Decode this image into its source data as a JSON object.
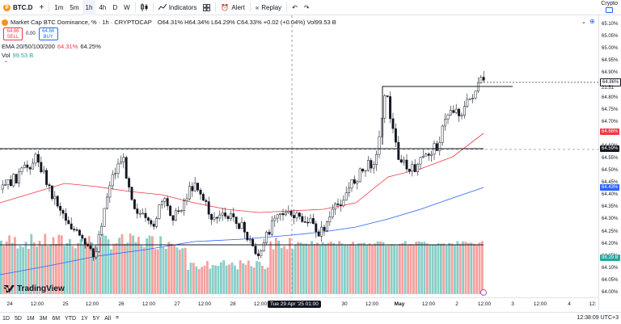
{
  "toolbar": {
    "symbol": "BTC.D",
    "timeframes": [
      "1m",
      "5m",
      "1h",
      "4h",
      "D",
      "W"
    ],
    "active_timeframe": "1h",
    "indicators_label": "Indicators",
    "alert_label": "Alert",
    "replay_label": "Replay",
    "crypto_label": "Crypto"
  },
  "legend": {
    "title": "Market Cap BTC Dominance, % · 1h · CRYPTOCAP",
    "ohlc": "O64.31% H64.34% L64.29% C64.33% +0.02 (+0.04%) Vol99.53 B",
    "sell_price": "64.86",
    "sell_label": "SELL",
    "buy_price": "64.86",
    "buy_label": "BUY",
    "spread": "0.00",
    "ema_label": "EMA 20/50/100/200",
    "ema_v1": "64.31%",
    "ema_v2": "64.25%",
    "vol_label": "Vol",
    "vol_value": "99.53 B"
  },
  "price_axis": {
    "ticks": [
      "65.10%",
      "65.05%",
      "65.00%",
      "64.95%",
      "64.90%",
      "64.80%",
      "64.75%",
      "64.70%",
      "64.60%",
      "64.55%",
      "64.50%",
      "64.45%",
      "64.40%",
      "64.35%",
      "64.30%",
      "64.25%",
      "64.20%",
      "64.15%",
      "64.10%",
      "64.05%",
      "64.00%"
    ],
    "current_price": "64.86%",
    "current_time": "21:51",
    "ema_red": "64.66%",
    "crosshair_price": "64.59%",
    "ema_blue": "64.43%",
    "volume": "98.29 B"
  },
  "time_axis": {
    "labels": [
      "24",
      "12:00",
      "25",
      "12:00",
      "26",
      "12:00",
      "27",
      "12:00",
      "28",
      "12:00",
      "30",
      "12:00",
      "May",
      "12:00",
      "2",
      "12:00",
      "3",
      "12:00",
      "4",
      "12:"
    ],
    "crosshair_time": "Tue 29 Apr '25   01:00"
  },
  "bottom_bar": {
    "ranges": [
      "1D",
      "5D",
      "1M",
      "3M",
      "6M",
      "YTD",
      "1Y",
      "5Y",
      "All"
    ],
    "clock": "12:38:09 UTC+3"
  },
  "branding": "TradingView",
  "colors": {
    "ema_red": "#f23645",
    "ema_blue": "#2962ff",
    "vol_up": "#26a69a",
    "vol_down": "#ef5350"
  }
}
